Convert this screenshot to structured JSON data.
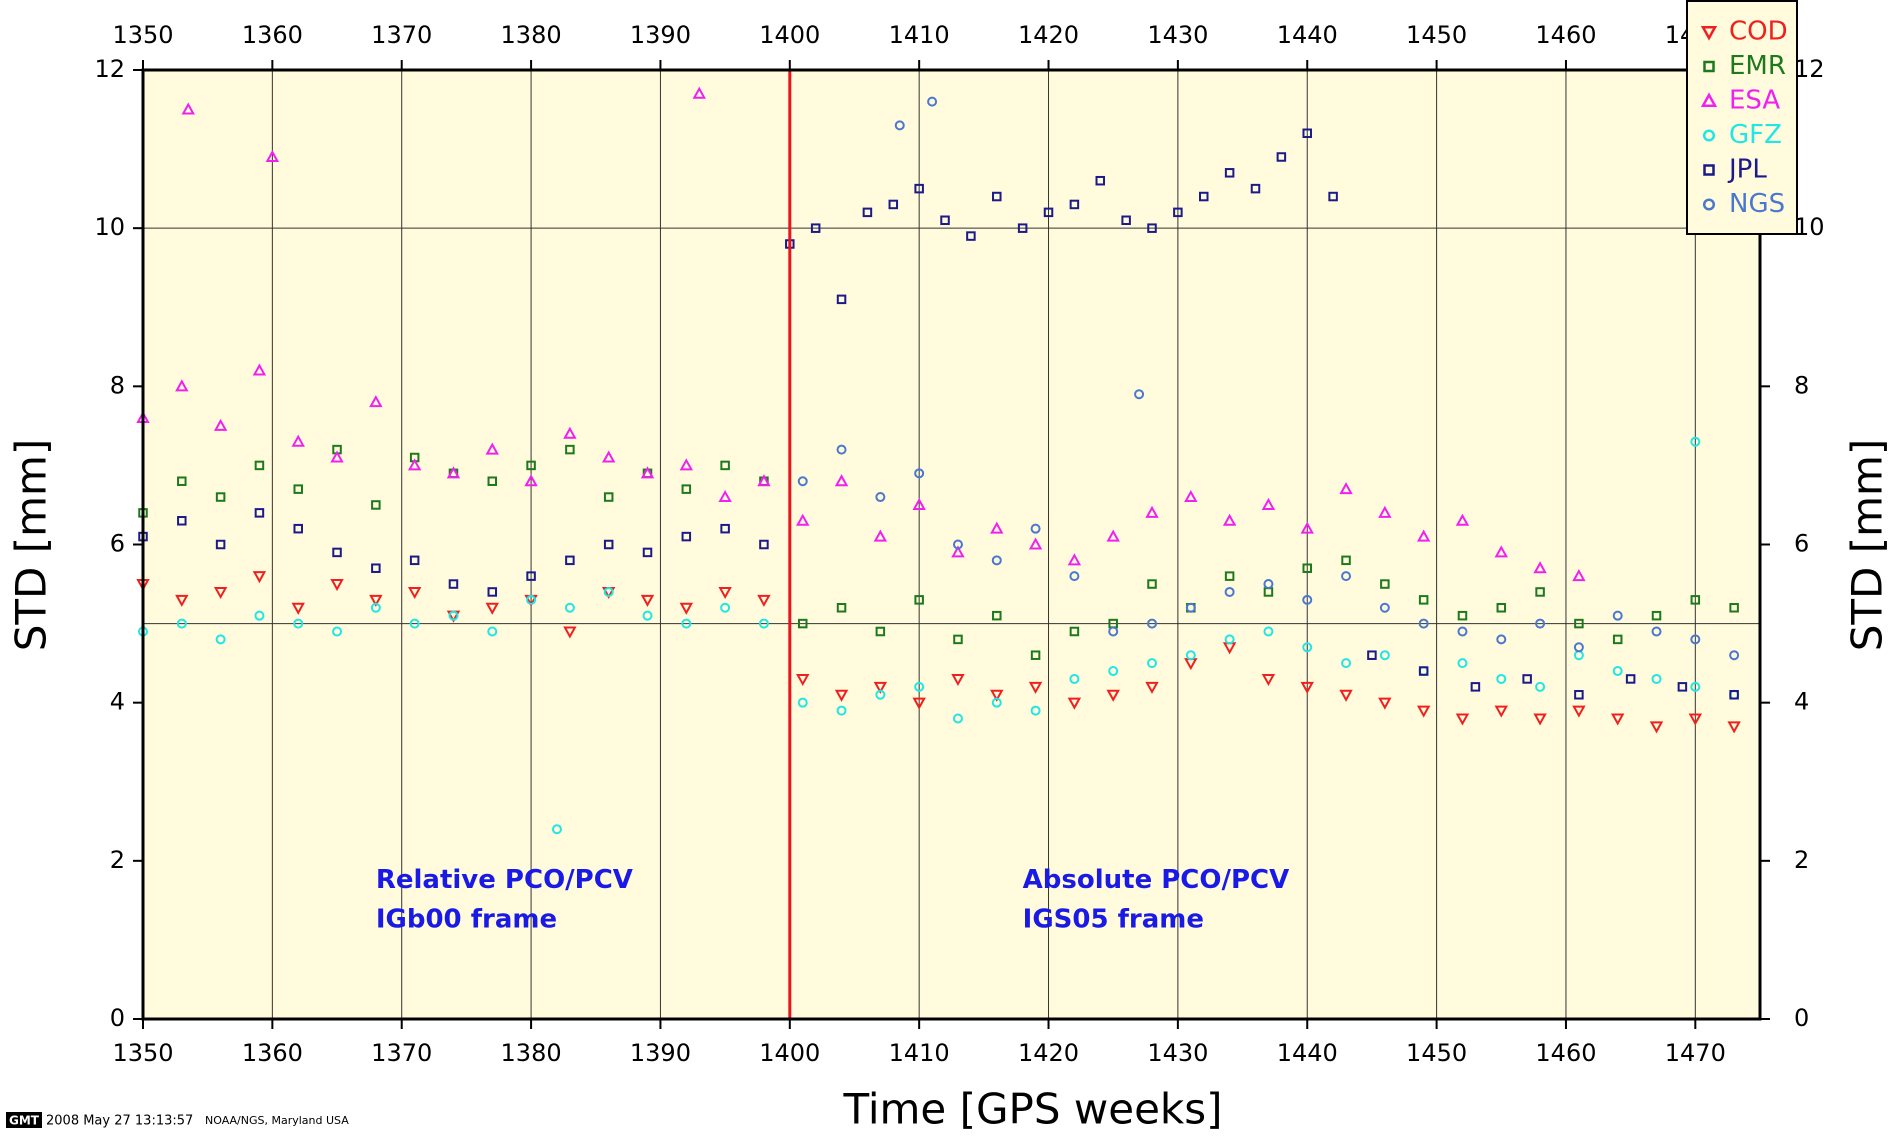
{
  "chart_data": {
    "type": "scatter",
    "ylabel": "STD [mm]",
    "xlabel": "Time [GPS weeks]",
    "xlim": [
      1350,
      1475
    ],
    "ylim": [
      0,
      12
    ],
    "xticks": [
      1350,
      1360,
      1370,
      1380,
      1390,
      1400,
      1410,
      1420,
      1430,
      1440,
      1450,
      1460,
      1470
    ],
    "yticks": [
      0,
      2,
      4,
      6,
      8,
      10,
      12
    ],
    "ygrid": [
      5,
      10
    ],
    "grid": true,
    "background": "#fffbdc",
    "legend": "top-right",
    "vline": {
      "x": 1400,
      "color": "#e8141e"
    },
    "annotations": [
      {
        "text": "Relative PCO/PCV",
        "x": 1368,
        "y": 1.75
      },
      {
        "text": "IGb00 frame",
        "x": 1368,
        "y": 1.25
      },
      {
        "text": "Absolute PCO/PCV",
        "x": 1418,
        "y": 1.75
      },
      {
        "text": "IGS05 frame",
        "x": 1418,
        "y": 1.25
      }
    ],
    "footer": {
      "logo": "GMT",
      "timestamp": "2008 May 27 13:13:57",
      "source": "NOAA/NGS, Maryland USA"
    },
    "series": [
      {
        "name": "COD",
        "color": "#f0201e",
        "marker": "triangle-down",
        "x": [
          1350,
          1353,
          1356,
          1359,
          1362,
          1365,
          1368,
          1371,
          1374,
          1377,
          1380,
          1383,
          1386,
          1389,
          1392,
          1395,
          1398,
          1401,
          1404,
          1407,
          1410,
          1413,
          1416,
          1419,
          1422,
          1425,
          1428,
          1431,
          1434,
          1437,
          1440,
          1443,
          1446,
          1449,
          1452,
          1455,
          1458,
          1461,
          1464,
          1467,
          1470,
          1473
        ],
        "values": [
          5.5,
          5.3,
          5.4,
          5.6,
          5.2,
          5.5,
          5.3,
          5.4,
          5.1,
          5.2,
          5.3,
          4.9,
          5.4,
          5.3,
          5.2,
          5.4,
          5.3,
          4.3,
          4.1,
          4.2,
          4.0,
          4.3,
          4.1,
          4.2,
          4.0,
          4.1,
          4.2,
          4.5,
          4.7,
          4.3,
          4.2,
          4.1,
          4.0,
          3.9,
          3.8,
          3.9,
          3.8,
          3.9,
          3.8,
          3.7,
          3.8,
          3.7
        ]
      },
      {
        "name": "EMR",
        "color": "#1c7a1c",
        "marker": "square",
        "x": [
          1350,
          1353,
          1356,
          1359,
          1362,
          1365,
          1368,
          1371,
          1374,
          1377,
          1380,
          1383,
          1386,
          1389,
          1392,
          1395,
          1398,
          1401,
          1404,
          1407,
          1410,
          1413,
          1416,
          1419,
          1422,
          1425,
          1428,
          1431,
          1434,
          1437,
          1440,
          1443,
          1446,
          1449,
          1452,
          1455,
          1458,
          1461,
          1464,
          1467,
          1470,
          1473
        ],
        "values": [
          6.4,
          6.8,
          6.6,
          7.0,
          6.7,
          7.2,
          6.5,
          7.1,
          6.9,
          6.8,
          7.0,
          7.2,
          6.6,
          6.9,
          6.7,
          7.0,
          6.8,
          5.0,
          5.2,
          4.9,
          5.3,
          4.8,
          5.1,
          4.6,
          4.9,
          5.0,
          5.5,
          5.2,
          5.6,
          5.4,
          5.7,
          5.8,
          5.5,
          5.3,
          5.1,
          5.2,
          5.4,
          5.0,
          4.8,
          5.1,
          5.3,
          5.2
        ]
      },
      {
        "name": "ESA",
        "color": "#f020f0",
        "marker": "triangle",
        "x": [
          1350,
          1353,
          1356,
          1359,
          1362,
          1365,
          1368,
          1371,
          1374,
          1377,
          1380,
          1383,
          1386,
          1389,
          1392,
          1395,
          1398,
          1401,
          1404,
          1407,
          1410,
          1413,
          1416,
          1419,
          1422,
          1425,
          1428,
          1431,
          1434,
          1437,
          1440,
          1443,
          1446,
          1449,
          1452,
          1455,
          1458,
          1461,
          1353.5,
          1393,
          1360
        ],
        "values": [
          7.6,
          8.0,
          7.5,
          8.2,
          7.3,
          7.1,
          7.8,
          7.0,
          6.9,
          7.2,
          6.8,
          7.4,
          7.1,
          6.9,
          7.0,
          6.6,
          6.8,
          6.3,
          6.8,
          6.1,
          6.5,
          5.9,
          6.2,
          6.0,
          5.8,
          6.1,
          6.4,
          6.6,
          6.3,
          6.5,
          6.2,
          6.7,
          6.4,
          6.1,
          6.3,
          5.9,
          5.7,
          5.6,
          11.5,
          11.7,
          10.9
        ]
      },
      {
        "name": "GFZ",
        "color": "#20e6e6",
        "marker": "circle",
        "x": [
          1350,
          1353,
          1356,
          1359,
          1362,
          1365,
          1368,
          1371,
          1374,
          1377,
          1380,
          1383,
          1386,
          1389,
          1392,
          1395,
          1398,
          1401,
          1404,
          1407,
          1410,
          1413,
          1416,
          1419,
          1422,
          1425,
          1428,
          1431,
          1434,
          1437,
          1440,
          1443,
          1446,
          1449,
          1452,
          1455,
          1458,
          1461,
          1464,
          1467,
          1470,
          1473,
          1382,
          1470
        ],
        "values": [
          4.9,
          5.0,
          4.8,
          5.1,
          5.0,
          4.9,
          5.2,
          5.0,
          5.1,
          4.9,
          5.3,
          5.2,
          5.4,
          5.1,
          5.0,
          5.2,
          5.0,
          4.0,
          3.9,
          4.1,
          4.2,
          3.8,
          4.0,
          3.9,
          4.3,
          4.4,
          4.5,
          4.6,
          4.8,
          4.9,
          4.7,
          4.5,
          4.6,
          4.4,
          4.5,
          4.3,
          4.2,
          4.6,
          4.4,
          4.3,
          4.2,
          4.1,
          2.4,
          7.3
        ]
      },
      {
        "name": "JPL",
        "color": "#1a1a8a",
        "marker": "square",
        "x": [
          1350,
          1353,
          1356,
          1359,
          1362,
          1365,
          1368,
          1371,
          1374,
          1377,
          1380,
          1383,
          1386,
          1389,
          1392,
          1395,
          1398,
          1400,
          1402,
          1404,
          1406,
          1408,
          1410,
          1412,
          1414,
          1416,
          1418,
          1420,
          1422,
          1424,
          1426,
          1428,
          1430,
          1432,
          1434,
          1436,
          1438,
          1440,
          1442,
          1445,
          1449,
          1453,
          1457,
          1461,
          1465,
          1469,
          1473
        ],
        "values": [
          6.1,
          6.3,
          6.0,
          6.4,
          6.2,
          5.9,
          5.7,
          5.8,
          5.5,
          5.4,
          5.6,
          5.8,
          6.0,
          5.9,
          6.1,
          6.2,
          6.0,
          9.8,
          10.0,
          9.1,
          10.2,
          10.3,
          10.5,
          10.1,
          9.9,
          10.4,
          10.0,
          10.2,
          10.3,
          10.6,
          10.1,
          10.0,
          10.2,
          10.4,
          10.7,
          10.5,
          10.9,
          11.2,
          10.4,
          4.6,
          4.4,
          4.2,
          4.3,
          4.1,
          4.3,
          4.2,
          4.1
        ]
      },
      {
        "name": "NGS",
        "color": "#4a78d0",
        "marker": "circle",
        "x": [
          1401,
          1404,
          1407,
          1410,
          1413,
          1416,
          1419,
          1422,
          1425,
          1428,
          1431,
          1434,
          1437,
          1440,
          1443,
          1446,
          1449,
          1452,
          1455,
          1458,
          1461,
          1464,
          1467,
          1470,
          1473,
          1411,
          1408.5,
          1427
        ],
        "values": [
          6.8,
          7.2,
          6.6,
          6.9,
          6.0,
          5.8,
          6.2,
          5.6,
          4.9,
          5.0,
          5.2,
          5.4,
          5.5,
          5.3,
          5.6,
          5.2,
          5.0,
          4.9,
          4.8,
          5.0,
          4.7,
          5.1,
          4.9,
          4.8,
          4.6,
          11.6,
          11.3,
          7.9
        ]
      }
    ]
  }
}
